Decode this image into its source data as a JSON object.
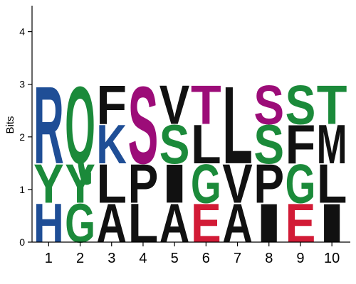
{
  "chart_data": {
    "type": "sequence_logo",
    "ylabel": "Bits",
    "ylim": [
      0,
      4.5
    ],
    "yticks": [
      0,
      1,
      2,
      3,
      4
    ],
    "xticks": [
      "1",
      "2",
      "3",
      "4",
      "5",
      "6",
      "7",
      "8",
      "9",
      "10"
    ],
    "colors": {
      "blue": "#1f4e96",
      "green": "#1b8a3a",
      "purple": "#9c0c78",
      "red": "#d21b36",
      "black": "#111111"
    },
    "positions": [
      {
        "pos": "1",
        "letters": [
          {
            "char": "H",
            "bits": 0.75,
            "color": "blue"
          },
          {
            "char": "Y",
            "bits": 0.75,
            "color": "green"
          },
          {
            "char": "R",
            "bits": 1.5,
            "color": "blue"
          }
        ]
      },
      {
        "pos": "2",
        "letters": [
          {
            "char": "G",
            "bits": 0.75,
            "color": "green"
          },
          {
            "char": "Y",
            "bits": 0.75,
            "color": "green"
          },
          {
            "char": "Q",
            "bits": 1.5,
            "color": "green"
          }
        ]
      },
      {
        "pos": "3",
        "letters": [
          {
            "char": "A",
            "bits": 0.75,
            "color": "black"
          },
          {
            "char": "L",
            "bits": 0.75,
            "color": "black"
          },
          {
            "char": "K",
            "bits": 0.75,
            "color": "blue"
          },
          {
            "char": "F",
            "bits": 0.75,
            "color": "black"
          }
        ]
      },
      {
        "pos": "4",
        "letters": [
          {
            "char": "L",
            "bits": 0.75,
            "color": "black"
          },
          {
            "char": "P",
            "bits": 0.75,
            "color": "black"
          },
          {
            "char": "S",
            "bits": 1.5,
            "color": "purple"
          }
        ]
      },
      {
        "pos": "5",
        "letters": [
          {
            "char": "A",
            "bits": 0.75,
            "color": "black"
          },
          {
            "char": "I",
            "bits": 0.75,
            "color": "black"
          },
          {
            "char": "S",
            "bits": 0.75,
            "color": "green"
          },
          {
            "char": "V",
            "bits": 0.75,
            "color": "black"
          }
        ]
      },
      {
        "pos": "6",
        "letters": [
          {
            "char": "E",
            "bits": 0.75,
            "color": "red"
          },
          {
            "char": "G",
            "bits": 0.75,
            "color": "green"
          },
          {
            "char": "L",
            "bits": 0.75,
            "color": "black"
          },
          {
            "char": "T",
            "bits": 0.75,
            "color": "purple"
          }
        ]
      },
      {
        "pos": "7",
        "letters": [
          {
            "char": "A",
            "bits": 0.75,
            "color": "black"
          },
          {
            "char": "V",
            "bits": 0.75,
            "color": "black"
          },
          {
            "char": "L",
            "bits": 1.5,
            "color": "black"
          }
        ]
      },
      {
        "pos": "8",
        "letters": [
          {
            "char": "I",
            "bits": 0.75,
            "color": "black"
          },
          {
            "char": "P",
            "bits": 0.75,
            "color": "black"
          },
          {
            "char": "S",
            "bits": 0.75,
            "color": "green"
          },
          {
            "char": "S",
            "bits": 0.75,
            "color": "purple"
          }
        ]
      },
      {
        "pos": "9",
        "letters": [
          {
            "char": "E",
            "bits": 0.75,
            "color": "red"
          },
          {
            "char": "G",
            "bits": 0.75,
            "color": "green"
          },
          {
            "char": "F",
            "bits": 0.75,
            "color": "black"
          },
          {
            "char": "S",
            "bits": 0.75,
            "color": "green"
          }
        ]
      },
      {
        "pos": "10",
        "letters": [
          {
            "char": "I",
            "bits": 0.75,
            "color": "black"
          },
          {
            "char": "L",
            "bits": 0.75,
            "color": "black"
          },
          {
            "char": "M",
            "bits": 0.75,
            "color": "black"
          },
          {
            "char": "T",
            "bits": 0.75,
            "color": "green"
          }
        ]
      }
    ]
  }
}
